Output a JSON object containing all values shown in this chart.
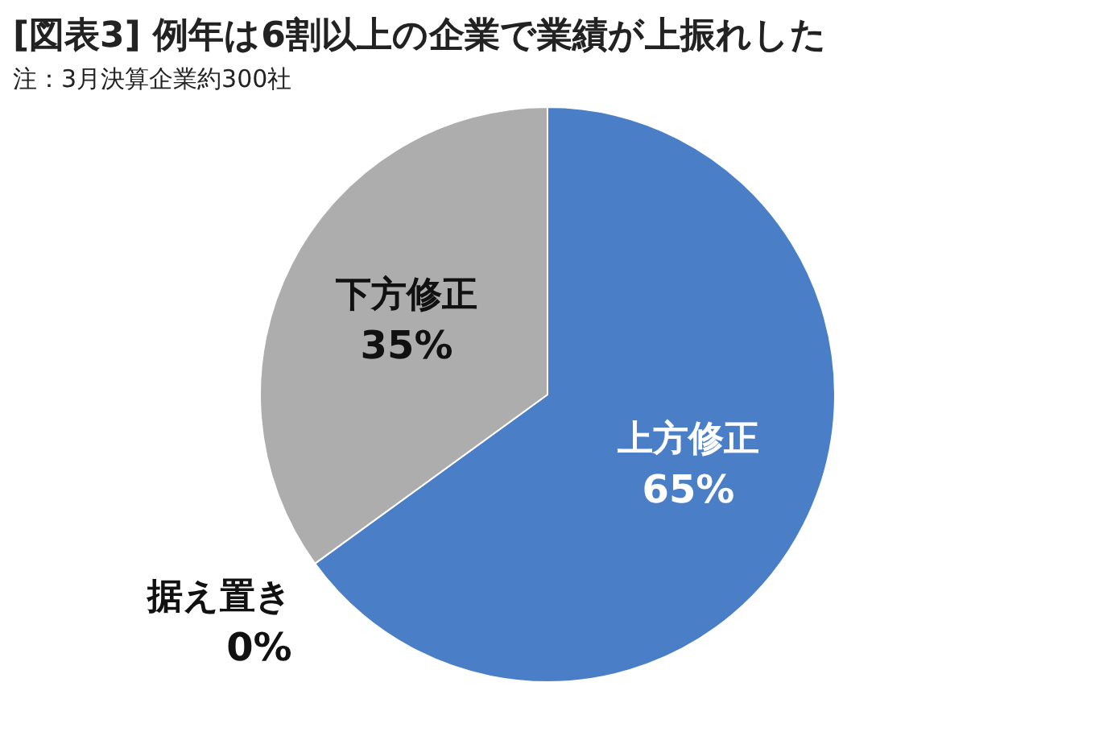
{
  "chart_data": {
    "type": "pie",
    "title": "[図表3] 例年は6割以上の企業で業績が上振れした",
    "annotations": [
      "注：3月決算企業約300社"
    ],
    "categories": [
      "上方修正",
      "据え置き",
      "下方修正"
    ],
    "values": [
      65,
      0,
      35
    ],
    "colors": [
      "#4a7fc8",
      "#7f7f7f",
      "#adadad"
    ],
    "value_labels": [
      "65%",
      "0%",
      "35%"
    ],
    "legend": false
  }
}
